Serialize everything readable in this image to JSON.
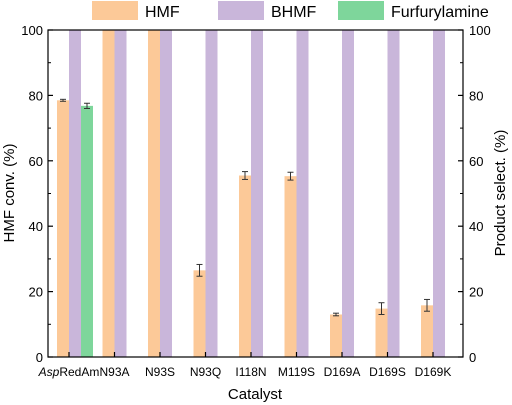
{
  "chart_data": {
    "type": "bar",
    "title": "",
    "xlabel": "Catalyst",
    "ylabel": "HMF conv. (%)",
    "y2label": "Product select. (%)",
    "ylim": [
      0,
      100
    ],
    "y2lim": [
      0,
      100
    ],
    "yticks": [
      0,
      20,
      40,
      60,
      80,
      100
    ],
    "legend": "top",
    "grid": false,
    "categories": [
      "AspRedAm",
      "N93A",
      "N93S",
      "N93Q",
      "I118N",
      "M119S",
      "D169A",
      "D169S",
      "D169K"
    ],
    "category_parts": [
      {
        "italic": "Asp",
        "normal": "RedAm"
      },
      {
        "italic": "",
        "normal": "N93A"
      },
      {
        "italic": "",
        "normal": "N93S"
      },
      {
        "italic": "",
        "normal": "N93Q"
      },
      {
        "italic": "",
        "normal": "I118N"
      },
      {
        "italic": "",
        "normal": "M119S"
      },
      {
        "italic": "",
        "normal": "D169A"
      },
      {
        "italic": "",
        "normal": "D169S"
      },
      {
        "italic": "",
        "normal": "D169K"
      }
    ],
    "series": [
      {
        "name": "HMF",
        "axis": "left",
        "color": "#fcc998",
        "values": [
          78.5,
          100,
          100,
          26.5,
          55.5,
          55.3,
          13,
          14.8,
          15.8
        ],
        "errors": [
          0.3,
          0,
          0,
          1.8,
          1.2,
          1.2,
          0.4,
          1.8,
          1.8
        ]
      },
      {
        "name": "BHMF",
        "axis": "right",
        "color": "#c9b6da",
        "values": [
          100,
          100,
          100,
          100,
          100,
          100,
          100,
          100,
          100
        ],
        "errors": [
          0,
          0,
          0,
          0,
          0,
          0,
          0,
          0,
          0
        ]
      },
      {
        "name": "Furfurylamine",
        "axis": "right",
        "color": "#7ed69b",
        "values": [
          76.8,
          0,
          0,
          0,
          0,
          0,
          0,
          0,
          0
        ],
        "errors": [
          0.8,
          0,
          0,
          0,
          0,
          0,
          0,
          0,
          0
        ]
      }
    ]
  }
}
